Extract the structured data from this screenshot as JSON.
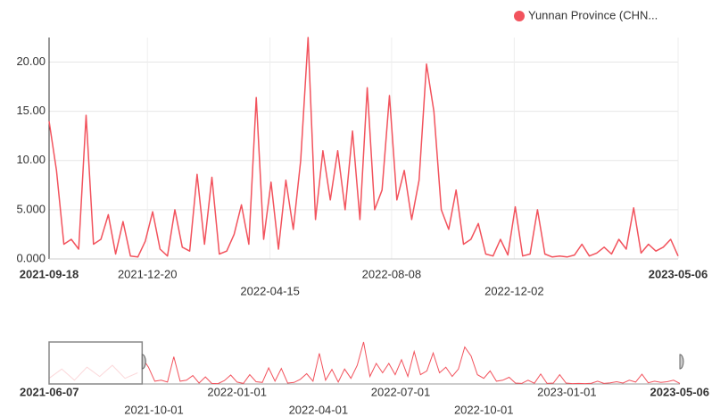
{
  "chart_data": {
    "type": "line",
    "series": [
      {
        "name": "Yunnan Province (CHN...",
        "color": "#f2535d",
        "x": [
          "2021-09-18",
          "2021-09-25",
          "2021-10-02",
          "2021-10-09",
          "2021-10-16",
          "2021-10-23",
          "2021-10-30",
          "2021-11-06",
          "2021-11-13",
          "2021-11-20",
          "2021-11-27",
          "2021-12-04",
          "2021-12-11",
          "2021-12-18",
          "2021-12-25",
          "2022-01-01",
          "2022-01-08",
          "2022-01-15",
          "2022-01-22",
          "2022-01-29",
          "2022-02-05",
          "2022-02-12",
          "2022-02-19",
          "2022-02-26",
          "2022-03-05",
          "2022-03-12",
          "2022-03-19",
          "2022-03-26",
          "2022-04-02",
          "2022-04-09",
          "2022-04-16",
          "2022-04-23",
          "2022-04-30",
          "2022-05-07",
          "2022-05-14",
          "2022-05-21",
          "2022-05-28",
          "2022-06-04",
          "2022-06-11",
          "2022-06-18",
          "2022-06-25",
          "2022-07-02",
          "2022-07-09",
          "2022-07-16",
          "2022-07-23",
          "2022-07-30",
          "2022-08-06",
          "2022-08-13",
          "2022-08-20",
          "2022-08-27",
          "2022-09-03",
          "2022-09-10",
          "2022-09-17",
          "2022-09-24",
          "2022-10-01",
          "2022-10-08",
          "2022-10-15",
          "2022-10-22",
          "2022-10-29",
          "2022-11-05",
          "2022-11-12",
          "2022-11-19",
          "2022-11-26",
          "2022-12-03",
          "2022-12-10",
          "2022-12-17",
          "2022-12-24",
          "2022-12-31",
          "2023-01-07",
          "2023-01-14",
          "2023-01-21",
          "2023-01-28",
          "2023-02-04",
          "2023-02-11",
          "2023-02-18",
          "2023-02-25",
          "2023-03-04",
          "2023-03-11",
          "2023-03-18",
          "2023-03-25",
          "2023-04-01",
          "2023-04-08",
          "2023-04-15",
          "2023-04-22",
          "2023-04-29",
          "2023-05-06"
        ],
        "values": [
          14,
          9,
          1.5,
          2,
          1,
          14.6,
          1.5,
          2,
          4.5,
          0.5,
          3.8,
          0.3,
          0.2,
          1.8,
          4.8,
          1,
          0.3,
          5,
          1.2,
          0.8,
          8.6,
          1.5,
          8.3,
          0.5,
          0.8,
          2.5,
          5.5,
          1.5,
          16.4,
          2,
          7.8,
          1,
          8,
          3,
          10,
          22.5,
          4,
          11,
          6,
          11,
          5,
          13,
          4,
          17.4,
          5,
          7,
          16.6,
          6,
          9,
          4,
          8,
          19.8,
          15,
          5,
          3,
          7,
          1.5,
          2,
          3.6,
          0.5,
          0.3,
          2,
          0.4,
          5.3,
          0.3,
          0.5,
          5,
          0.5,
          0.2,
          0.3,
          0.2,
          0.4,
          1.5,
          0.3,
          0.6,
          1.2,
          0.5,
          2,
          1,
          5.2,
          0.6,
          1.5,
          0.8,
          1.2,
          2,
          0.3
        ]
      }
    ],
    "xlim": [
      "2021-09-18",
      "2023-05-06"
    ],
    "xticks": [
      "2021-09-18",
      "2021-12-20",
      "2022-04-15",
      "2022-08-08",
      "2022-12-02",
      "2023-05-06"
    ],
    "ylim": [
      0,
      22.5
    ],
    "yticks": [
      {
        "value": 0,
        "label": "0.000"
      },
      {
        "value": 5,
        "label": "5.000"
      },
      {
        "value": 10,
        "label": "10.00"
      },
      {
        "value": 15,
        "label": "15.00"
      },
      {
        "value": 20,
        "label": "20.00"
      }
    ],
    "grid": true,
    "legend": "top-right",
    "navigator": {
      "xlim": [
        "2021-06-07",
        "2023-05-06"
      ],
      "xticks": [
        "2021-06-07",
        "2021-10-01",
        "2022-01-01",
        "2022-04-01",
        "2022-07-01",
        "2022-10-01",
        "2023-01-01",
        "2023-05-06"
      ],
      "series": [
        {
          "color": "#f7a8ad",
          "x": [
            "2021-06-07",
            "2021-06-21",
            "2021-07-05",
            "2021-07-19",
            "2021-08-02",
            "2021-08-16",
            "2021-08-30",
            "2021-09-13"
          ],
          "values": [
            3,
            8,
            2,
            9,
            4,
            10,
            3,
            6
          ]
        }
      ]
    }
  }
}
